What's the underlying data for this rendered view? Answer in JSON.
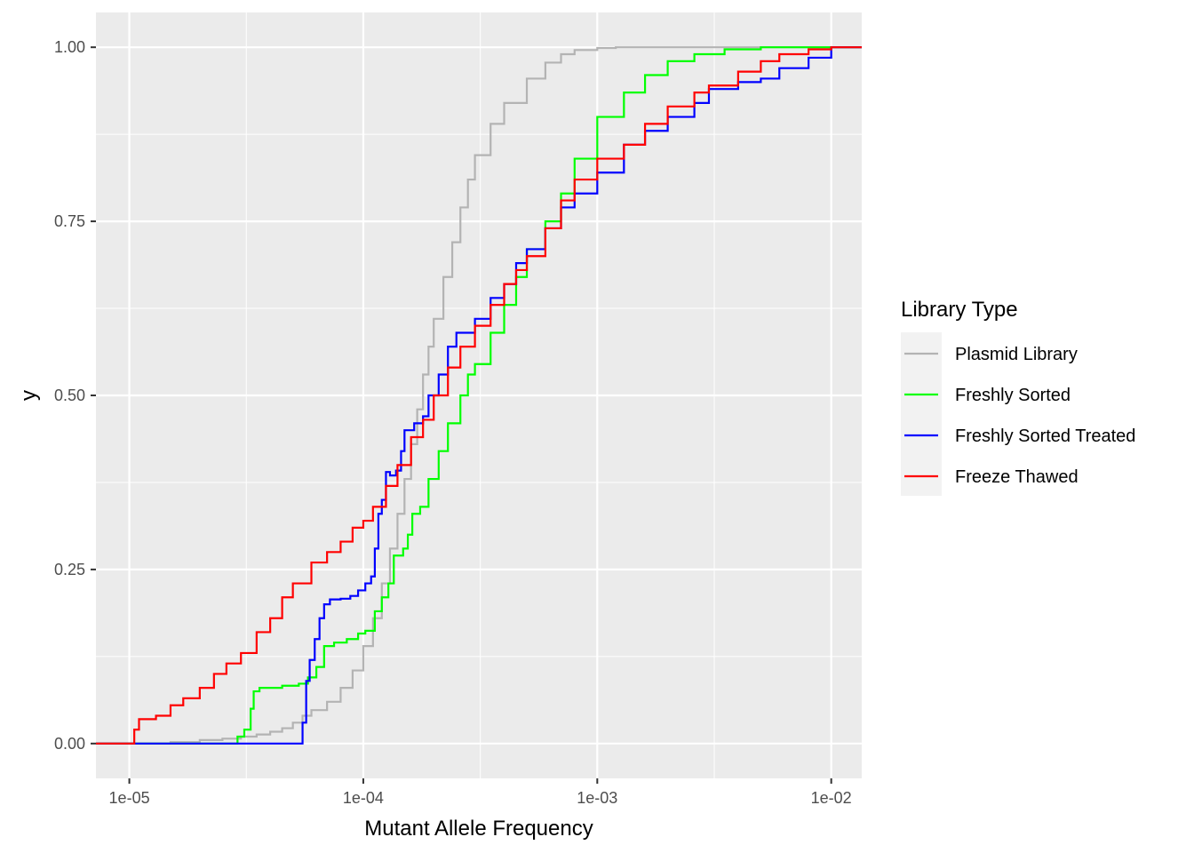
{
  "chart_data": {
    "type": "line",
    "subtype": "step-ecdf",
    "xlabel": "Mutant Allele Frequency",
    "ylabel": "y",
    "x_scale": "log10",
    "xlim": [
      7.2e-06,
      0.0135
    ],
    "ylim": [
      -0.05,
      1.05
    ],
    "x_ticks": [
      {
        "value": 1e-05,
        "label": "1e-05"
      },
      {
        "value": 0.0001,
        "label": "1e-04"
      },
      {
        "value": 0.001,
        "label": "1e-03"
      },
      {
        "value": 0.01,
        "label": "1e-02"
      }
    ],
    "y_ticks": [
      {
        "value": 0,
        "label": "0.00"
      },
      {
        "value": 0.25,
        "label": "0.25"
      },
      {
        "value": 0.5,
        "label": "0.50"
      },
      {
        "value": 0.75,
        "label": "0.75"
      },
      {
        "value": 1,
        "label": "1.00"
      }
    ],
    "grid": true,
    "legend_title": "Library Type",
    "legend_position": "right",
    "series": [
      {
        "name": "Plasmid Library",
        "color": "#b3b3b3",
        "points": [
          [
            7.2e-06,
            0
          ],
          [
            1e-05,
            0
          ],
          [
            1.5e-05,
            0.002
          ],
          [
            2e-05,
            0.005
          ],
          [
            2.5e-05,
            0.007
          ],
          [
            3e-05,
            0.01
          ],
          [
            3.5e-05,
            0.013
          ],
          [
            4e-05,
            0.017
          ],
          [
            4.5e-05,
            0.022
          ],
          [
            5e-05,
            0.03
          ],
          [
            5.5e-05,
            0.04
          ],
          [
            6e-05,
            0.048
          ],
          [
            7e-05,
            0.06
          ],
          [
            8e-05,
            0.08
          ],
          [
            9e-05,
            0.105
          ],
          [
            0.0001,
            0.14
          ],
          [
            0.00011,
            0.18
          ],
          [
            0.00012,
            0.23
          ],
          [
            0.00013,
            0.28
          ],
          [
            0.00014,
            0.33
          ],
          [
            0.00015,
            0.38
          ],
          [
            0.00016,
            0.43
          ],
          [
            0.00017,
            0.48
          ],
          [
            0.00018,
            0.53
          ],
          [
            0.00019,
            0.57
          ],
          [
            0.0002,
            0.61
          ],
          [
            0.00022,
            0.67
          ],
          [
            0.00024,
            0.72
          ],
          [
            0.00026,
            0.77
          ],
          [
            0.00028,
            0.81
          ],
          [
            0.0003,
            0.845
          ],
          [
            0.00035,
            0.89
          ],
          [
            0.0004,
            0.92
          ],
          [
            0.0005,
            0.955
          ],
          [
            0.0006,
            0.978
          ],
          [
            0.0007,
            0.99
          ],
          [
            0.0008,
            0.996
          ],
          [
            0.001,
            0.999
          ],
          [
            0.0012,
            1
          ],
          [
            0.0135,
            1
          ]
        ]
      },
      {
        "name": "Freshly Sorted",
        "color": "#00ff00",
        "points": [
          [
            7.2e-06,
            0
          ],
          [
            2.7e-05,
            0
          ],
          [
            2.9e-05,
            0.01
          ],
          [
            3.1e-05,
            0.02
          ],
          [
            3.3e-05,
            0.05
          ],
          [
            3.4e-05,
            0.075
          ],
          [
            3.6e-05,
            0.08
          ],
          [
            4.5e-05,
            0.083
          ],
          [
            5.3e-05,
            0.086
          ],
          [
            5.8e-05,
            0.095
          ],
          [
            6.3e-05,
            0.11
          ],
          [
            6.8e-05,
            0.14
          ],
          [
            7.5e-05,
            0.145
          ],
          [
            8.5e-05,
            0.15
          ],
          [
            9.5e-05,
            0.158
          ],
          [
            0.000102,
            0.162
          ],
          [
            0.000112,
            0.19
          ],
          [
            0.00012,
            0.21
          ],
          [
            0.000128,
            0.23
          ],
          [
            0.000135,
            0.27
          ],
          [
            0.000148,
            0.28
          ],
          [
            0.000155,
            0.3
          ],
          [
            0.000162,
            0.33
          ],
          [
            0.000175,
            0.34
          ],
          [
            0.00019,
            0.38
          ],
          [
            0.00021,
            0.42
          ],
          [
            0.00023,
            0.46
          ],
          [
            0.00026,
            0.5
          ],
          [
            0.00028,
            0.53
          ],
          [
            0.0003,
            0.545
          ],
          [
            0.00035,
            0.59
          ],
          [
            0.0004,
            0.63
          ],
          [
            0.00045,
            0.67
          ],
          [
            0.0005,
            0.71
          ],
          [
            0.0006,
            0.75
          ],
          [
            0.0007,
            0.79
          ],
          [
            0.0008,
            0.84
          ],
          [
            0.001,
            0.9
          ],
          [
            0.0013,
            0.935
          ],
          [
            0.0016,
            0.96
          ],
          [
            0.002,
            0.98
          ],
          [
            0.0026,
            0.99
          ],
          [
            0.0035,
            0.997
          ],
          [
            0.005,
            1
          ],
          [
            0.0135,
            1
          ]
        ]
      },
      {
        "name": "Freshly Sorted Treated",
        "color": "#0000ff",
        "points": [
          [
            7.2e-06,
            0
          ],
          [
            5.3e-05,
            0
          ],
          [
            5.5e-05,
            0.03
          ],
          [
            5.7e-05,
            0.09
          ],
          [
            5.9e-05,
            0.12
          ],
          [
            6.2e-05,
            0.15
          ],
          [
            6.5e-05,
            0.18
          ],
          [
            6.8e-05,
            0.2
          ],
          [
            7.2e-05,
            0.207
          ],
          [
            8e-05,
            0.208
          ],
          [
            8.8e-05,
            0.212
          ],
          [
            9.5e-05,
            0.22
          ],
          [
            0.000102,
            0.23
          ],
          [
            0.000108,
            0.24
          ],
          [
            0.000112,
            0.28
          ],
          [
            0.000116,
            0.33
          ],
          [
            0.00012,
            0.35
          ],
          [
            0.000125,
            0.39
          ],
          [
            0.00013,
            0.385
          ],
          [
            0.000138,
            0.392
          ],
          [
            0.000145,
            0.42
          ],
          [
            0.00015,
            0.45
          ],
          [
            0.000165,
            0.46
          ],
          [
            0.00018,
            0.47
          ],
          [
            0.00019,
            0.5
          ],
          [
            0.00021,
            0.53
          ],
          [
            0.00023,
            0.57
          ],
          [
            0.00025,
            0.59
          ],
          [
            0.0003,
            0.61
          ],
          [
            0.00035,
            0.64
          ],
          [
            0.0004,
            0.66
          ],
          [
            0.00045,
            0.69
          ],
          [
            0.0005,
            0.71
          ],
          [
            0.0006,
            0.74
          ],
          [
            0.0007,
            0.77
          ],
          [
            0.0008,
            0.79
          ],
          [
            0.001,
            0.82
          ],
          [
            0.0013,
            0.86
          ],
          [
            0.0016,
            0.88
          ],
          [
            0.002,
            0.9
          ],
          [
            0.0026,
            0.92
          ],
          [
            0.003,
            0.94
          ],
          [
            0.004,
            0.95
          ],
          [
            0.005,
            0.955
          ],
          [
            0.006,
            0.97
          ],
          [
            0.008,
            0.985
          ],
          [
            0.01,
            1
          ],
          [
            0.0135,
            1
          ]
        ]
      },
      {
        "name": "Freeze Thawed",
        "color": "#ff0000",
        "points": [
          [
            7.2e-06,
            0
          ],
          [
            1e-05,
            0
          ],
          [
            1.05e-05,
            0.02
          ],
          [
            1.1e-05,
            0.035
          ],
          [
            1.3e-05,
            0.04
          ],
          [
            1.5e-05,
            0.055
          ],
          [
            1.7e-05,
            0.065
          ],
          [
            2e-05,
            0.08
          ],
          [
            2.3e-05,
            0.1
          ],
          [
            2.6e-05,
            0.115
          ],
          [
            3e-05,
            0.13
          ],
          [
            3.5e-05,
            0.16
          ],
          [
            4e-05,
            0.18
          ],
          [
            4.5e-05,
            0.21
          ],
          [
            5e-05,
            0.23
          ],
          [
            6e-05,
            0.26
          ],
          [
            7e-05,
            0.275
          ],
          [
            8e-05,
            0.29
          ],
          [
            9e-05,
            0.31
          ],
          [
            0.0001,
            0.32
          ],
          [
            0.00011,
            0.34
          ],
          [
            0.000125,
            0.37
          ],
          [
            0.00014,
            0.4
          ],
          [
            0.00016,
            0.44
          ],
          [
            0.00018,
            0.465
          ],
          [
            0.0002,
            0.5
          ],
          [
            0.00023,
            0.54
          ],
          [
            0.00026,
            0.57
          ],
          [
            0.0003,
            0.6
          ],
          [
            0.00035,
            0.63
          ],
          [
            0.0004,
            0.66
          ],
          [
            0.00045,
            0.68
          ],
          [
            0.0005,
            0.7
          ],
          [
            0.0006,
            0.74
          ],
          [
            0.0007,
            0.78
          ],
          [
            0.0008,
            0.81
          ],
          [
            0.001,
            0.84
          ],
          [
            0.0013,
            0.86
          ],
          [
            0.0016,
            0.89
          ],
          [
            0.002,
            0.915
          ],
          [
            0.0026,
            0.935
          ],
          [
            0.003,
            0.945
          ],
          [
            0.004,
            0.965
          ],
          [
            0.005,
            0.98
          ],
          [
            0.006,
            0.99
          ],
          [
            0.008,
            0.997
          ],
          [
            0.01,
            1
          ],
          [
            0.0135,
            1
          ]
        ]
      }
    ]
  }
}
